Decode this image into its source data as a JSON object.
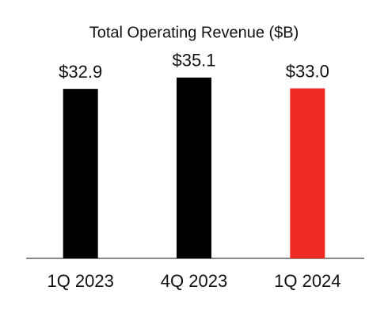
{
  "chart_data": {
    "type": "bar",
    "title": "Total Operating Revenue ($B)",
    "categories": [
      "1Q 2023",
      "4Q 2023",
      "1Q 2024"
    ],
    "values": [
      32.9,
      35.1,
      33.0
    ],
    "value_labels": [
      "$32.9",
      "$35.1",
      "$33.0"
    ],
    "colors": [
      "#000000",
      "#000000",
      "#ee2a24"
    ],
    "ylim": [
      0,
      38
    ]
  }
}
